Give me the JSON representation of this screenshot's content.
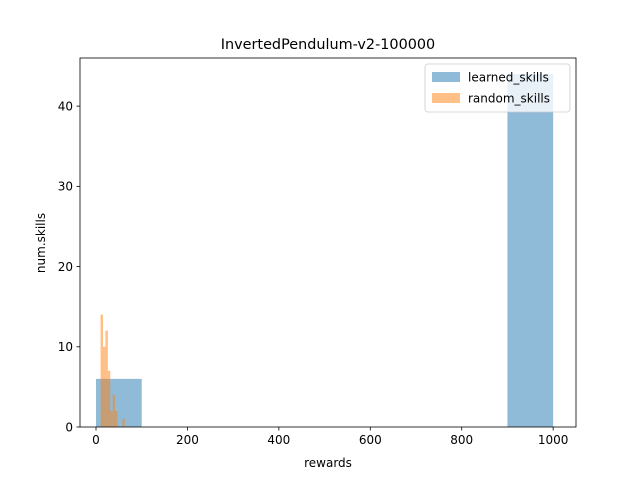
{
  "chart_data": {
    "type": "bar",
    "title": "InvertedPendulum-v2-100000",
    "xlabel": "rewards",
    "ylabel": "num.skills",
    "xlim": [
      -35,
      1050
    ],
    "ylim": [
      0,
      46
    ],
    "xticks": [
      0,
      200,
      400,
      600,
      800,
      1000
    ],
    "yticks": [
      0,
      10,
      20,
      30,
      40
    ],
    "legend_position": "top-right",
    "series": [
      {
        "name": "learned_skills",
        "color": "#1f77b4",
        "opacity": 0.5,
        "bins": [
          {
            "x0": 0,
            "x1": 100,
            "count": 6
          },
          {
            "x0": 900,
            "x1": 1000,
            "count": 44
          }
        ]
      },
      {
        "name": "random_skills",
        "color": "#ff7f0e",
        "opacity": 0.5,
        "bins": [
          {
            "x0": 10.0,
            "x1": 15.3,
            "count": 14
          },
          {
            "x0": 15.3,
            "x1": 20.6,
            "count": 10
          },
          {
            "x0": 20.6,
            "x1": 25.9,
            "count": 12
          },
          {
            "x0": 25.9,
            "x1": 31.2,
            "count": 7
          },
          {
            "x0": 31.2,
            "x1": 36.5,
            "count": 2
          },
          {
            "x0": 36.5,
            "x1": 41.8,
            "count": 4
          },
          {
            "x0": 41.8,
            "x1": 47.1,
            "count": 2
          },
          {
            "x0": 47.1,
            "x1": 52.4,
            "count": 0
          },
          {
            "x0": 52.4,
            "x1": 57.7,
            "count": 0
          },
          {
            "x0": 57.7,
            "x1": 63.0,
            "count": 1
          }
        ]
      }
    ]
  }
}
